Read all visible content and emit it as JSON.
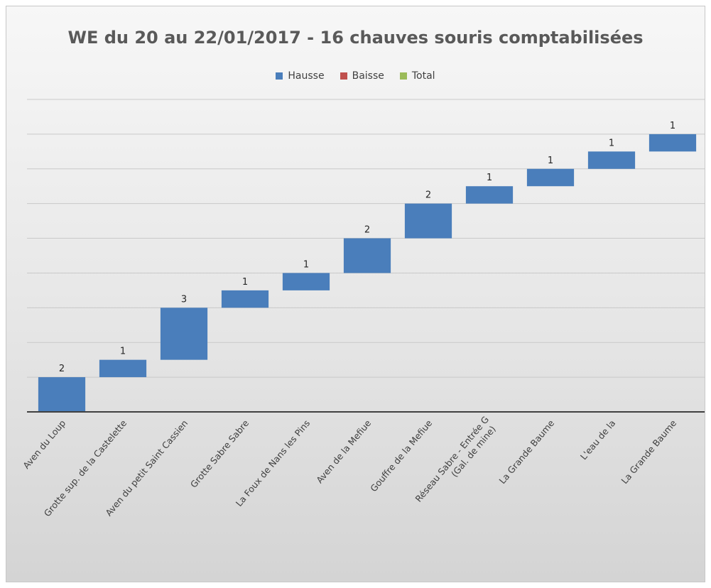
{
  "chart_data": {
    "type": "waterfall",
    "title": "WE du 20 au 22/01/2017 - 16 chauves souris comptabilisées",
    "legend": [
      {
        "label": "Hausse",
        "color": "#4a7ebb"
      },
      {
        "label": "Baisse",
        "color": "#c0504d"
      },
      {
        "label": "Total",
        "color": "#9bbb59"
      }
    ],
    "legend_position": "top",
    "categories": [
      [
        "Aven du Loup"
      ],
      [
        "Grotte sup. de la Castelette"
      ],
      [
        "Aven du petit Saint Cassien"
      ],
      [
        "Grotte Sabre Sabre"
      ],
      [
        "La Foux de Nans les Pins"
      ],
      [
        "Aven de la Mefiue"
      ],
      [
        "Gouffre de la Mefiue"
      ],
      [
        "Réseau Sabre - Entrée G",
        "(Gal. de mine)"
      ],
      [
        "La Grande Baume"
      ],
      [
        "L'eau de la"
      ],
      [
        "La Grande Baume"
      ]
    ],
    "values": [
      2,
      1,
      3,
      1,
      1,
      2,
      2,
      1,
      1,
      1,
      1
    ],
    "data_labels": [
      "2",
      "1",
      "3",
      "1",
      "1",
      "2",
      "2",
      "1",
      "1",
      "1",
      "1"
    ],
    "ylim": [
      0,
      18
    ],
    "grid": true
  }
}
